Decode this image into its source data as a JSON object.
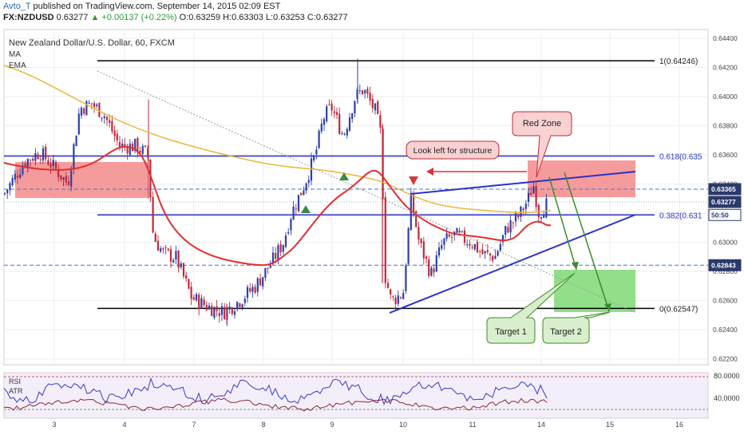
{
  "header": {
    "author": "Avto_T",
    "published": "published on TradingView.com, September 14, 2015 02:09 EST",
    "symbol": "FX:NZDUSD",
    "last": "0.63277",
    "change": "▲ +0.00137 (+0.22%)",
    "ohlc": "O:0.63259 H:0.63303 L:0.63253 C:0.63277"
  },
  "chart_data": {
    "type": "candlestick",
    "title": "New Zealand Dollar/U.S. Dollar, 60, FXCM",
    "indicators": [
      "MA",
      "EMA"
    ],
    "x_ticks": [
      "3",
      "4",
      "7",
      "8",
      "9",
      "10",
      "11",
      "14",
      "15",
      "16"
    ],
    "y_ticks": [
      "0.64400",
      "0.64200",
      "0.64000",
      "0.63800",
      "0.63600",
      "0.63400",
      "0.63200",
      "0.63000",
      "0.62800",
      "0.62600",
      "0.62400",
      "0.62200"
    ],
    "ylim": [
      0.6216,
      0.6446
    ],
    "price_badges": [
      {
        "value": 0.63365,
        "label": "0.63365",
        "style": "dark"
      },
      {
        "value": 0.63277,
        "label": "0.63277",
        "style": "dark"
      },
      {
        "value": 0.63188,
        "label": "50:50",
        "style": "light"
      },
      {
        "value": 0.62843,
        "label": "0.62843",
        "style": "dark"
      }
    ],
    "fib_levels": [
      {
        "label": "1(0.64246)",
        "value": 0.64246,
        "color": "#000000"
      },
      {
        "label": "0.618(0.635",
        "value": 0.63592,
        "color": "#2b32c8"
      },
      {
        "label": "0.382(0.631",
        "value": 0.63188,
        "color": "#2b32c8"
      },
      {
        "label": "0(0.62547)",
        "value": 0.62547,
        "color": "#000000"
      }
    ],
    "annotations": {
      "red_zone": "Red Zone",
      "structure": "Look left for structure",
      "target1": "Target 1",
      "target2": "Target 2"
    },
    "rsi_panel": {
      "labels": [
        "RSI",
        "ATR"
      ],
      "ticks": [
        "80.0000",
        "40.0000"
      ]
    },
    "colors": {
      "up_candle": "#2e3fa8",
      "down_candle": "#c0283a",
      "ema": "#e03030",
      "ma": "#e8b83a",
      "fib": "#2b32c8",
      "dashed": "#3a78d8",
      "red_zone": "#f58a8a",
      "green_zone": "#86dc7c"
    }
  }
}
